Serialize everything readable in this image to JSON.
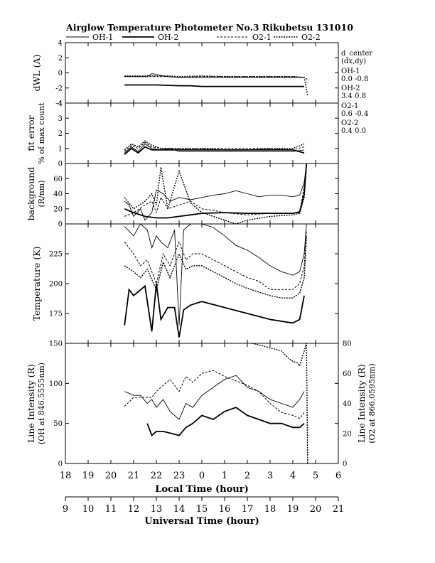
{
  "chart_data": {
    "type": "line",
    "title": "Airglow Temperature Photometer No.3  Rikubetsu    131010",
    "legend": [
      "OH-1",
      "OH-2",
      "O2-1",
      "O2-2"
    ],
    "x_axis": {
      "label": "Local Time (hour)",
      "ticks": [
        "18",
        "19",
        "20",
        "21",
        "22",
        "23",
        "0",
        "1",
        "2",
        "3",
        "4",
        "5",
        "6"
      ],
      "range": [
        18,
        30
      ]
    },
    "ut_axis": {
      "label": "Universal Time (hour)",
      "ticks": [
        "9",
        "10",
        "11",
        "12",
        "13",
        "14",
        "15",
        "16",
        "17",
        "18",
        "19",
        "20",
        "21"
      ]
    },
    "dcenter": {
      "title": "d_center",
      "subtitle": "(dx,dy)",
      "entries": [
        {
          "name": "OH-1",
          "value": "0.0   -0.8"
        },
        {
          "name": "OH-2",
          "value": "3.4   0.8"
        },
        {
          "name": "O2-1",
          "value": "0.6   -0.4"
        },
        {
          "name": "O2-2",
          "value": "0.4   0.0"
        }
      ]
    },
    "panels": [
      {
        "id": "dwl",
        "ylabel": [
          "dWL (A)"
        ],
        "ylim": [
          -4,
          4
        ],
        "yticks": [
          "4",
          "2",
          "0",
          "-2",
          "-4"
        ],
        "series": [
          {
            "name": "OH-1",
            "x": [
              20.6,
              21.6,
              21.8,
              22.5,
              23.0,
              24,
              25,
              26,
              27,
              28,
              28.5
            ],
            "y": [
              -0.5,
              -0.5,
              -0.1,
              -0.5,
              -0.6,
              -0.6,
              -0.6,
              -0.6,
              -0.6,
              -0.6,
              -0.6
            ]
          },
          {
            "name": "OH-2",
            "x": [
              20.6,
              21.5,
              22,
              23,
              23.5,
              24,
              25,
              26,
              27,
              28,
              28.5
            ],
            "y": [
              -1.6,
              -1.6,
              -1.6,
              -1.7,
              -1.7,
              -1.8,
              -1.8,
              -1.8,
              -1.8,
              -1.8,
              -1.8
            ]
          },
          {
            "name": "O2-1",
            "x": [
              20.6,
              21.5,
              22.5,
              23,
              24,
              25,
              26,
              27,
              28,
              28.5,
              28.65
            ],
            "y": [
              -0.5,
              -0.5,
              -0.5,
              -0.6,
              -0.5,
              -0.5,
              -0.5,
              -0.5,
              -0.5,
              -0.6,
              -0.9
            ]
          },
          {
            "name": "O2-2",
            "x": [
              20.6,
              21.5,
              22.5,
              23,
              24,
              25,
              26,
              27,
              28,
              28.5,
              28.65
            ],
            "y": [
              -0.4,
              -0.4,
              -0.4,
              -0.5,
              -0.4,
              -0.5,
              -0.5,
              -0.5,
              -0.5,
              -0.6,
              -3.0
            ]
          }
        ]
      },
      {
        "id": "fit",
        "ylabel": [
          "fit error",
          "% of max count"
        ],
        "ylim": [
          0,
          4
        ],
        "yticks": [
          "4",
          "3",
          "2",
          "1",
          "0"
        ],
        "series": [
          {
            "name": "OH-1",
            "x": [
              20.6,
              20.9,
              21.2,
              21.5,
              21.8,
              22.2,
              22.6,
              23.0,
              24,
              25,
              26,
              27,
              28,
              28.5
            ],
            "y": [
              0.7,
              1.1,
              0.8,
              1.3,
              1.0,
              0.9,
              1.0,
              0.8,
              0.8,
              0.8,
              0.8,
              0.8,
              0.8,
              0.9
            ]
          },
          {
            "name": "OH-2",
            "x": [
              20.6,
              20.9,
              21.2,
              21.5,
              21.8,
              22.2,
              22.6,
              23.0,
              24,
              25,
              26,
              27,
              28,
              28.5
            ],
            "y": [
              0.6,
              1.0,
              0.7,
              1.1,
              0.9,
              0.9,
              0.9,
              0.9,
              0.9,
              0.9,
              0.9,
              0.9,
              0.9,
              0.7
            ]
          },
          {
            "name": "O2-1",
            "x": [
              20.6,
              20.9,
              21.2,
              21.5,
              21.8,
              22.2,
              22.6,
              23.0,
              24,
              25,
              26,
              27,
              28,
              28.5
            ],
            "y": [
              0.8,
              1.2,
              1.0,
              1.4,
              1.1,
              1.0,
              1.0,
              1.0,
              1.0,
              1.0,
              1.0,
              1.0,
              0.9,
              1.1
            ]
          },
          {
            "name": "O2-2",
            "x": [
              20.6,
              20.9,
              21.2,
              21.5,
              21.8,
              22.2,
              22.6,
              23.0,
              24,
              25,
              26,
              27,
              28,
              28.5
            ],
            "y": [
              0.9,
              1.3,
              1.1,
              1.5,
              1.2,
              1.0,
              1.0,
              1.0,
              1.0,
              0.9,
              0.9,
              1.0,
              1.0,
              1.3
            ]
          }
        ]
      },
      {
        "id": "bg",
        "ylabel": [
          "background",
          "(R/nm)"
        ],
        "ylim": [
          0,
          80
        ],
        "yticks": [
          "60",
          "40",
          "20",
          "0"
        ],
        "series": [
          {
            "name": "OH-1",
            "x": [
              20.6,
              20.8,
              21.0,
              21.3,
              21.5,
              21.8,
              22.0,
              22.3,
              22.6,
              23.0,
              23.5,
              24,
              24.5,
              25,
              25.5,
              26,
              26.5,
              27,
              27.5,
              28,
              28.3,
              28.5,
              28.6
            ],
            "y": [
              30,
              25,
              10,
              20,
              5,
              15,
              45,
              40,
              30,
              35,
              32,
              35,
              38,
              40,
              44,
              40,
              36,
              38,
              38,
              36,
              38,
              55,
              80
            ]
          },
          {
            "name": "OH-2",
            "x": [
              20.6,
              21.0,
              21.5,
              22.0,
              22.5,
              23.0,
              23.5,
              24,
              25,
              26,
              27,
              28,
              28.3,
              28.5,
              28.6
            ],
            "y": [
              20,
              15,
              10,
              8,
              8,
              10,
              12,
              14,
              15,
              14,
              14,
              14,
              16,
              40,
              80
            ]
          },
          {
            "name": "O2-1",
            "x": [
              20.6,
              21.0,
              21.5,
              21.8,
              22.0,
              22.2,
              22.5,
              23.0,
              23.5,
              24,
              24.5,
              25,
              26,
              27,
              28,
              28.3,
              28.5,
              28.6
            ],
            "y": [
              10,
              15,
              25,
              30,
              15,
              35,
              20,
              25,
              30,
              20,
              18,
              15,
              12,
              14,
              14,
              15,
              50,
              80
            ]
          },
          {
            "name": "O2-2",
            "x": [
              20.6,
              21.0,
              21.5,
              21.8,
              22.0,
              22.2,
              22.5,
              23.0,
              23.5,
              24,
              25,
              25.5,
              26,
              27,
              28,
              28.3,
              28.5,
              28.6
            ],
            "y": [
              35,
              20,
              30,
              40,
              25,
              75,
              20,
              70,
              28,
              15,
              5,
              0,
              5,
              10,
              12,
              14,
              35,
              78
            ]
          }
        ]
      },
      {
        "id": "temp",
        "ylabel": [
          "Temperature (K)"
        ],
        "ylim": [
          150,
          250
        ],
        "yticks": [
          "225",
          "200",
          "175"
        ],
        "series": [
          {
            "name": "OH-1",
            "x": [
              20.6,
              21.0,
              21.3,
              21.6,
              21.8,
              22.0,
              22.2,
              22.5,
              22.8,
              23.0,
              23.2,
              23.5,
              24,
              24.5,
              25,
              25.5,
              26,
              26.5,
              27,
              27.5,
              28,
              28.3,
              28.5,
              28.6
            ],
            "y": [
              248,
              240,
              250,
              245,
              230,
              240,
              235,
              230,
              245,
              165,
              245,
              250,
              250,
              247,
              240,
              232,
              228,
              222,
              215,
              210,
              207,
              210,
              225,
              250
            ]
          },
          {
            "name": "OH-2",
            "x": [
              20.6,
              20.8,
              21.0,
              21.5,
              21.8,
              22.0,
              22.2,
              22.5,
              22.8,
              23.0,
              23.2,
              23.5,
              24,
              25,
              26,
              27,
              28,
              28.3,
              28.5
            ],
            "y": [
              165,
              195,
              190,
              198,
              160,
              200,
              170,
              180,
              180,
              155,
              178,
              182,
              185,
              180,
              175,
              170,
              167,
              170,
              190
            ]
          },
          {
            "name": "O2-1",
            "x": [
              20.6,
              21.0,
              21.3,
              21.6,
              22.0,
              22.3,
              22.6,
              23.0,
              23.3,
              23.6,
              24,
              24.5,
              25,
              25.5,
              26,
              26.5,
              27,
              27.5,
              28,
              28.3,
              28.5,
              28.6
            ],
            "y": [
              235,
              225,
              215,
              220,
              200,
              225,
              215,
              235,
              220,
              225,
              225,
              220,
              215,
              210,
              205,
              202,
              195,
              195,
              195,
              200,
              215,
              245
            ]
          },
          {
            "name": "O2-2",
            "x": [
              20.6,
              21.0,
              21.3,
              21.6,
              22.0,
              22.3,
              22.6,
              23.0,
              23.3,
              23.6,
              24,
              24.5,
              25,
              25.5,
              26,
              26.5,
              27,
              27.5,
              28,
              28.3,
              28.5,
              28.6
            ],
            "y": [
              215,
              210,
              205,
              212,
              195,
              218,
              205,
              225,
              212,
              215,
              215,
              210,
              205,
              200,
              196,
              193,
              190,
              188,
              188,
              192,
              205,
              240
            ]
          }
        ]
      },
      {
        "id": "int",
        "ylabel": [
          "Line Intensity (R)",
          "(OH at 846.5555nm)"
        ],
        "ylabel_right": [
          "Line Intensity (R)",
          "(O2 at 866.0595nm)"
        ],
        "ylim": [
          0,
          150
        ],
        "yticks": [
          "150",
          "100",
          "50",
          "0"
        ],
        "ylim_right": [
          0,
          80
        ],
        "yticks_right": [
          "80",
          "60",
          "40",
          "20",
          "0"
        ],
        "series": [
          {
            "name": "OH-1",
            "x": [
              20.6,
              21.0,
              21.3,
              21.6,
              21.8,
              22.0,
              22.3,
              22.6,
              23.0,
              23.3,
              23.6,
              24,
              24.5,
              25,
              25.5,
              26,
              26.5,
              27,
              27.5,
              28,
              28.3,
              28.5
            ],
            "y": [
              90,
              85,
              85,
              75,
              80,
              70,
              80,
              65,
              55,
              75,
              70,
              85,
              95,
              105,
              110,
              95,
              90,
              80,
              75,
              70,
              80,
              90
            ]
          },
          {
            "name": "OH-2",
            "x": [
              21.6,
              21.8,
              22.0,
              22.3,
              22.6,
              23.0,
              23.3,
              23.6,
              24,
              24.5,
              25,
              25.5,
              26,
              26.5,
              27,
              27.5,
              28,
              28.3,
              28.5
            ],
            "y": [
              50,
              35,
              40,
              40,
              38,
              35,
              45,
              50,
              60,
              55,
              65,
              70,
              60,
              55,
              50,
              50,
              45,
              45,
              50
            ]
          },
          {
            "name": "O2-1",
            "x": [
              20.6,
              21.0,
              21.3,
              21.6,
              21.8,
              22.0,
              22.3,
              22.6,
              23.0,
              23.3,
              23.6,
              24,
              24.5,
              25,
              25.5,
              26,
              26.5,
              27,
              27.5,
              28,
              28.3,
              28.5
            ],
            "y": [
              38,
              44,
              44,
              44,
              44,
              48,
              52,
              56,
              48,
              58,
              54,
              60,
              62,
              58,
              55,
              52,
              48,
              40,
              34,
              32,
              30,
              34
            ]
          },
          {
            "name": "O2-2",
            "x": [
              26.2,
              26.5,
              27,
              27.5,
              27.8,
              28.0,
              28.2,
              28.3,
              28.5,
              28.6,
              28.65
            ],
            "y": [
              80,
              79,
              77,
              75,
              70,
              68,
              67,
              65,
              75,
              80,
              0
            ]
          }
        ]
      }
    ]
  }
}
